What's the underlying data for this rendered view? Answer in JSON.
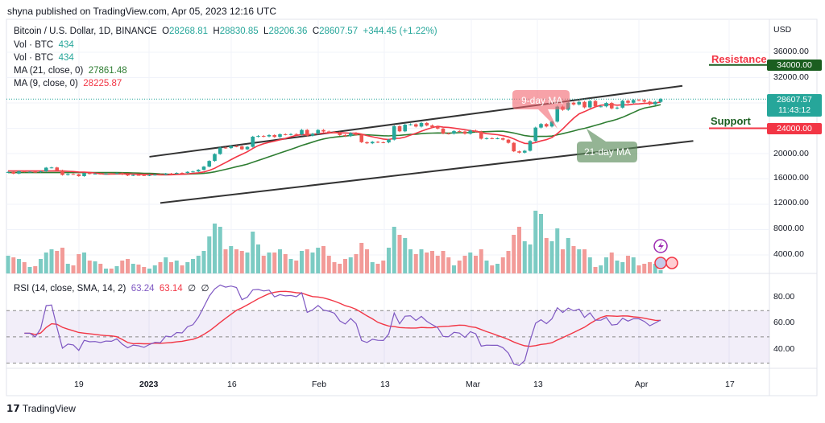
{
  "publisher_line": "shyna published on TradingView.com, Apr 05, 2023 12:16 UTC",
  "legend": {
    "symbol": "Bitcoin / U.S. Dollar, 1D, BINANCE",
    "open_label": "O",
    "open": "28268.81",
    "high_label": "H",
    "high": "28830.85",
    "low_label": "L",
    "low": "28206.36",
    "close_label": "C",
    "close": "28607.57",
    "change": "+344.45 (+1.22%)",
    "vol1_label": "Vol · BTC",
    "vol1": "434",
    "vol2_label": "Vol · BTC",
    "vol2": "434",
    "ma21_label": "MA (21, close, 0)",
    "ma21": "27861.48",
    "ma9_label": "MA (9, close, 0)",
    "ma9": "28225.87"
  },
  "rsi_legend": {
    "label": "RSI (14, close, SMA, 14, 2)",
    "rsi": "63.24",
    "sma": "63.14",
    "na1": "∅",
    "na2": "∅"
  },
  "currency": "USD",
  "price_ticks": [
    "36000.00",
    "32000.00",
    "20000.00",
    "16000.00",
    "12000.00",
    "8000.00",
    "4000.00"
  ],
  "rsi_ticks": [
    "80.00",
    "60.00",
    "40.00"
  ],
  "date_ticks": [
    "19",
    "2023",
    "16",
    "Feb",
    "13",
    "Mar",
    "13",
    "Apr",
    "17"
  ],
  "badges": {
    "resistance": "34000.00",
    "last_price": "28607.57",
    "countdown": "11:43:12",
    "support": "24000.00"
  },
  "annotations": {
    "resistance": "Resistance",
    "support": "Support",
    "ma9": "9-day MA",
    "ma21": "21-day MA"
  },
  "brand": "TradingView",
  "colors": {
    "up": "#26a69a",
    "down": "#ef5350",
    "ma9": "#f23645",
    "ma21": "#2e7d32",
    "rsi": "#7e57c2",
    "rsi_sma": "#f23645",
    "resistance": "#1b5e20",
    "support": "#f23645"
  },
  "chart_data": {
    "type": "candlestick",
    "x_start": "2022-12-06",
    "x_end": "2023-04-05",
    "interval": "1D",
    "ylim": [
      0,
      38000
    ],
    "closes": [
      17090,
      16840,
      17220,
      17130,
      17130,
      17090,
      17200,
      17780,
      17810,
      17360,
      16630,
      16780,
      16740,
      16440,
      16900,
      16820,
      16830,
      16780,
      16840,
      16830,
      16920,
      16700,
      16540,
      16630,
      16600,
      16540,
      16620,
      16680,
      16670,
      16850,
      16830,
      16950,
      16940,
      17120,
      17180,
      17440,
      17940,
      18840,
      19930,
      20950,
      20870,
      21180,
      21130,
      20680,
      21070,
      22670,
      22780,
      22710,
      22920,
      22630,
      23060,
      23010,
      23080,
      23030,
      23740,
      22830,
      23130,
      23730,
      23490,
      23430,
      23330,
      22930,
      22760,
      23240,
      22960,
      21800,
      21630,
      21860,
      21780,
      21770,
      22200,
      24330,
      23520,
      24570,
      24630,
      24270,
      24840,
      24450,
      24190,
      23950,
      23180,
      23150,
      23550,
      23490,
      23140,
      23640,
      23470,
      22350,
      22430,
      22410,
      22410,
      22200,
      21700,
      20360,
      20150,
      20450,
      21990,
      24110,
      24670,
      24280,
      25050,
      27420,
      26920,
      28040,
      27760,
      28170,
      27300,
      28300,
      27450,
      27460,
      27990,
      27140,
      27260,
      28340,
      28030,
      28460,
      28450,
      28200,
      27790,
      28170,
      28607.57
    ],
    "volumes": [
      22,
      20,
      18,
      14,
      8,
      9,
      18,
      26,
      30,
      28,
      32,
      12,
      10,
      24,
      26,
      16,
      15,
      12,
      6,
      6,
      9,
      16,
      18,
      12,
      11,
      8,
      6,
      10,
      14,
      20,
      14,
      16,
      10,
      14,
      18,
      22,
      28,
      46,
      62,
      58,
      30,
      34,
      30,
      28,
      26,
      52,
      36,
      22,
      26,
      26,
      30,
      24,
      18,
      16,
      28,
      30,
      26,
      32,
      34,
      22,
      14,
      12,
      18,
      20,
      24,
      38,
      30,
      14,
      12,
      16,
      32,
      58,
      48,
      44,
      30,
      24,
      30,
      26,
      28,
      22,
      28,
      20,
      10,
      16,
      22,
      26,
      22,
      30,
      16,
      10,
      12,
      20,
      28,
      48,
      58,
      40,
      36,
      78,
      74,
      44,
      40,
      56,
      30,
      44,
      34,
      30,
      30,
      20,
      8,
      10,
      20,
      26,
      16,
      14,
      22,
      20,
      10,
      12,
      14,
      12,
      4
    ],
    "channel": {
      "upper": [
        "2023-01-01",
        19500,
        "2023-04-09",
        30700
      ],
      "lower": [
        "2023-01-03",
        12200,
        "2023-04-11",
        22000
      ]
    },
    "levels": {
      "resistance": 34000,
      "support": 24000
    },
    "indicators": [
      "MA 9",
      "MA 21",
      "RSI 14",
      "RSI SMA 14"
    ],
    "rsi_bands": [
      70,
      50,
      30
    ],
    "rsi_ylim": [
      20,
      95
    ],
    "grid": true
  }
}
